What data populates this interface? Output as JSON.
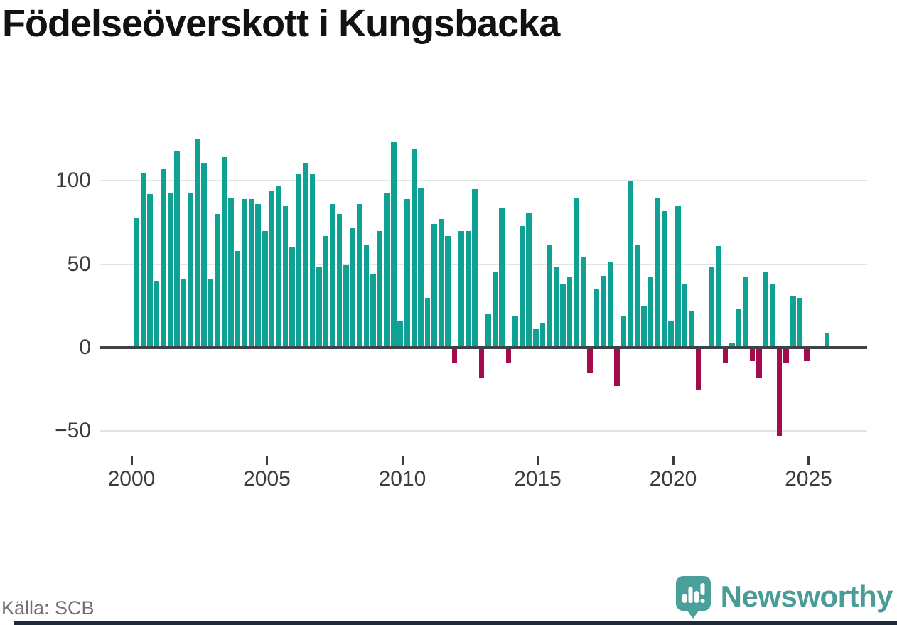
{
  "title": "Födelseöverskott i Kungsbacka",
  "source": "Källa: SCB",
  "branding": {
    "name": "Newsworthy",
    "icon": "newsworthy-chart-bubble-icon",
    "icon_color": "#4ba09b",
    "accent_bar_color": "#1e2a37"
  },
  "chart_data": {
    "type": "bar",
    "title": "Födelseöverskott i Kungsbacka",
    "frequency": "quarterly",
    "start_period": "2000 Q1",
    "end_period": "2025 Q3",
    "values": [
      78,
      105,
      92,
      40,
      107,
      93,
      118,
      41,
      93,
      125,
      111,
      41,
      80,
      114,
      90,
      58,
      89,
      89,
      86,
      70,
      94,
      97,
      85,
      60,
      104,
      111,
      104,
      48,
      67,
      86,
      80,
      50,
      72,
      86,
      62,
      44,
      70,
      93,
      123,
      16,
      89,
      119,
      96,
      30,
      74,
      77,
      67,
      -9,
      70,
      70,
      95,
      -18,
      20,
      45,
      84,
      -9,
      19,
      73,
      81,
      11,
      15,
      62,
      48,
      38,
      42,
      90,
      54,
      -15,
      35,
      43,
      51,
      -23,
      19,
      100,
      62,
      25,
      42,
      90,
      82,
      16,
      85,
      38,
      22,
      -25,
      0,
      48,
      61,
      -9,
      3,
      23,
      42,
      -8,
      -18,
      45,
      38,
      -53,
      -9,
      31,
      30,
      -8,
      0,
      1,
      9
    ],
    "positive_color": "#0fa193",
    "negative_color": "#a30d4d",
    "y_ticks": [
      100,
      50,
      0,
      -50
    ],
    "y_tick_labels": [
      "100",
      "50",
      "0",
      "−50"
    ],
    "x_ticks": [
      2000,
      2005,
      2010,
      2015,
      2020,
      2025
    ],
    "x_tick_labels": [
      "2000",
      "2005",
      "2010",
      "2015",
      "2020",
      "2025"
    ],
    "ylim": [
      -60,
      130
    ],
    "grid": "horizontal",
    "legend": "none"
  }
}
